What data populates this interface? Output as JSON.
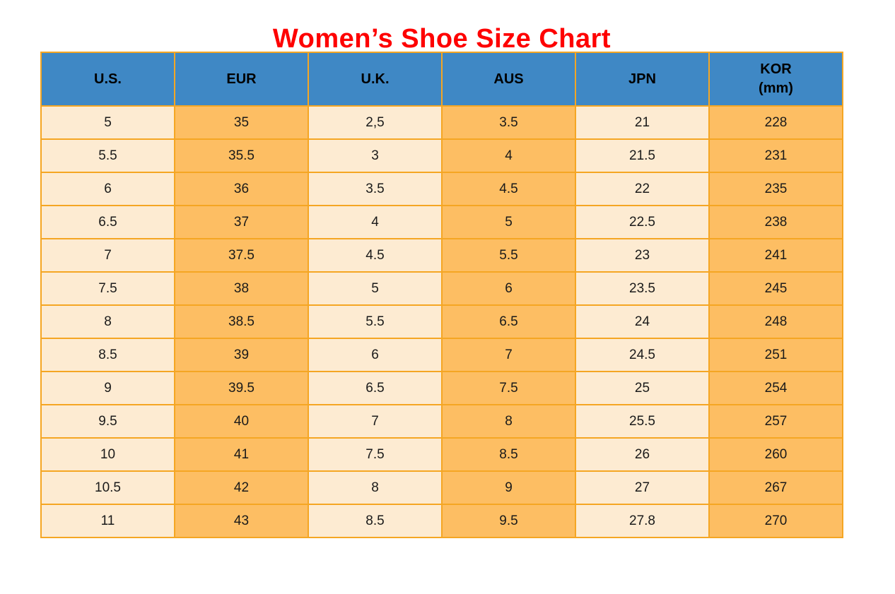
{
  "title": "Women’s Shoe Size Chart",
  "chart_data": {
    "type": "table",
    "title": "Women’s Shoe Size Chart",
    "columns": [
      "U.S.",
      "EUR",
      "U.K.",
      "AUS",
      "JPN",
      "KOR (mm)"
    ],
    "rows": [
      [
        "5",
        "35",
        "2,5",
        "3.5",
        "21",
        "228"
      ],
      [
        "5.5",
        "35.5",
        "3",
        "4",
        "21.5",
        "231"
      ],
      [
        "6",
        "36",
        "3.5",
        "4.5",
        "22",
        "235"
      ],
      [
        "6.5",
        "37",
        "4",
        "5",
        "22.5",
        "238"
      ],
      [
        "7",
        "37.5",
        "4.5",
        "5.5",
        "23",
        "241"
      ],
      [
        "7.5",
        "38",
        "5",
        "6",
        "23.5",
        "245"
      ],
      [
        "8",
        "38.5",
        "5.5",
        "6.5",
        "24",
        "248"
      ],
      [
        "8.5",
        "39",
        "6",
        "7",
        "24.5",
        "251"
      ],
      [
        "9",
        "39.5",
        "6.5",
        "7.5",
        "25",
        "254"
      ],
      [
        "9.5",
        "40",
        "7",
        "8",
        "25.5",
        "257"
      ],
      [
        "10",
        "41",
        "7.5",
        "8.5",
        "26",
        "260"
      ],
      [
        "10.5",
        "42",
        "8",
        "9",
        "27",
        "267"
      ],
      [
        "11",
        "43",
        "8.5",
        "9.5",
        "27.8",
        "270"
      ]
    ]
  },
  "table": {
    "header": [
      {
        "key": "us",
        "label": "U.S."
      },
      {
        "key": "eur",
        "label": "EUR"
      },
      {
        "key": "uk",
        "label": "U.K."
      },
      {
        "key": "aus",
        "label": "AUS"
      },
      {
        "key": "jpn",
        "label": "JPN"
      },
      {
        "key": "kor",
        "label": "KOR",
        "sublabel": "(mm)"
      }
    ]
  },
  "colors": {
    "title": "#FE0000",
    "header_bg": "#3F88C5",
    "column_light": "#FDEBD2",
    "column_orange": "#FDBE63",
    "border": "#F5A623",
    "text": "#1A1A1A"
  }
}
